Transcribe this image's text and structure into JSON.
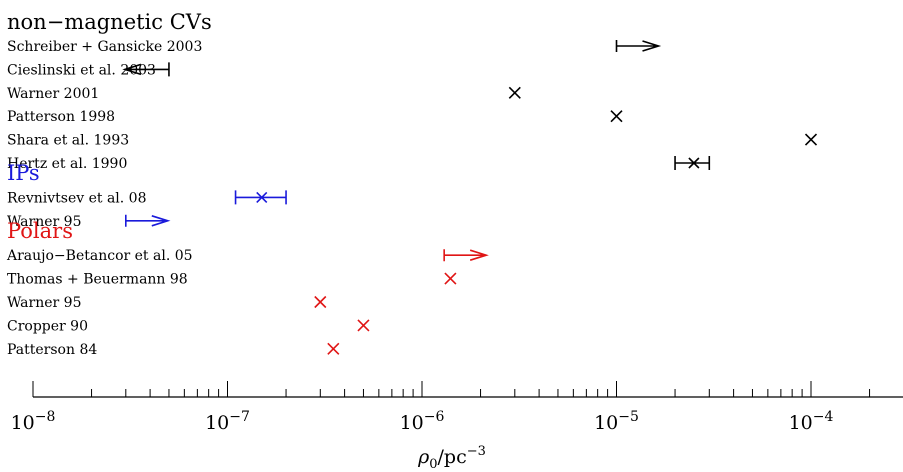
{
  "chart_data": {
    "type": "scatter",
    "title": "",
    "xlabel": "ρ₀/pc⁻³",
    "ylabel": "",
    "xscale": "log",
    "xlim": [
      1e-08,
      0.0003
    ],
    "grid": false,
    "x_tick_labels": [
      {
        "value": 1e-08,
        "base": "10",
        "exp": "−8"
      },
      {
        "value": 1e-07,
        "base": "10",
        "exp": "−7"
      },
      {
        "value": 1e-06,
        "base": "10",
        "exp": "−6"
      },
      {
        "value": 1e-05,
        "base": "10",
        "exp": "−5"
      },
      {
        "value": 0.0001,
        "base": "10",
        "exp": "−4"
      }
    ],
    "groups": [
      {
        "name": "non−magnetic CVs",
        "color": "#000000",
        "entries": [
          {
            "label": "Schreiber + Gansicke 2003",
            "kind": "lower_limit",
            "value": 1e-05
          },
          {
            "label": "Cieslinski et al. 2003",
            "kind": "upper_limit",
            "value": 5e-08
          },
          {
            "label": "Warner 2001",
            "kind": "point",
            "value": 3e-06
          },
          {
            "label": "Patterson 1998",
            "kind": "point",
            "value": 1e-05
          },
          {
            "label": "Shara et al. 1993",
            "kind": "point",
            "value": 0.0001
          },
          {
            "label": "Hertz et al. 1990",
            "kind": "range",
            "value": 2.5e-05,
            "low": 2e-05,
            "high": 3e-05
          }
        ]
      },
      {
        "name": "IPs",
        "color": "#1a1adb",
        "entries": [
          {
            "label": "Revnivtsev et al. 08",
            "kind": "range",
            "value": 1.5e-07,
            "low": 1.1e-07,
            "high": 2e-07
          },
          {
            "label": "Warner 95",
            "kind": "lower_limit",
            "value": 3e-08
          }
        ]
      },
      {
        "name": "Polars",
        "color": "#e01515",
        "entries": [
          {
            "label": "Araujo−Betancor et al. 05",
            "kind": "lower_limit",
            "value": 1.3e-06
          },
          {
            "label": "Thomas + Beuermann 98",
            "kind": "point",
            "value": 1.4e-06
          },
          {
            "label": "Warner 95",
            "kind": "point",
            "value": 3e-07
          },
          {
            "label": "Cropper 90",
            "kind": "point",
            "value": 5e-07
          },
          {
            "label": "Patterson 84",
            "kind": "point",
            "value": 3.5e-07
          }
        ]
      }
    ]
  }
}
